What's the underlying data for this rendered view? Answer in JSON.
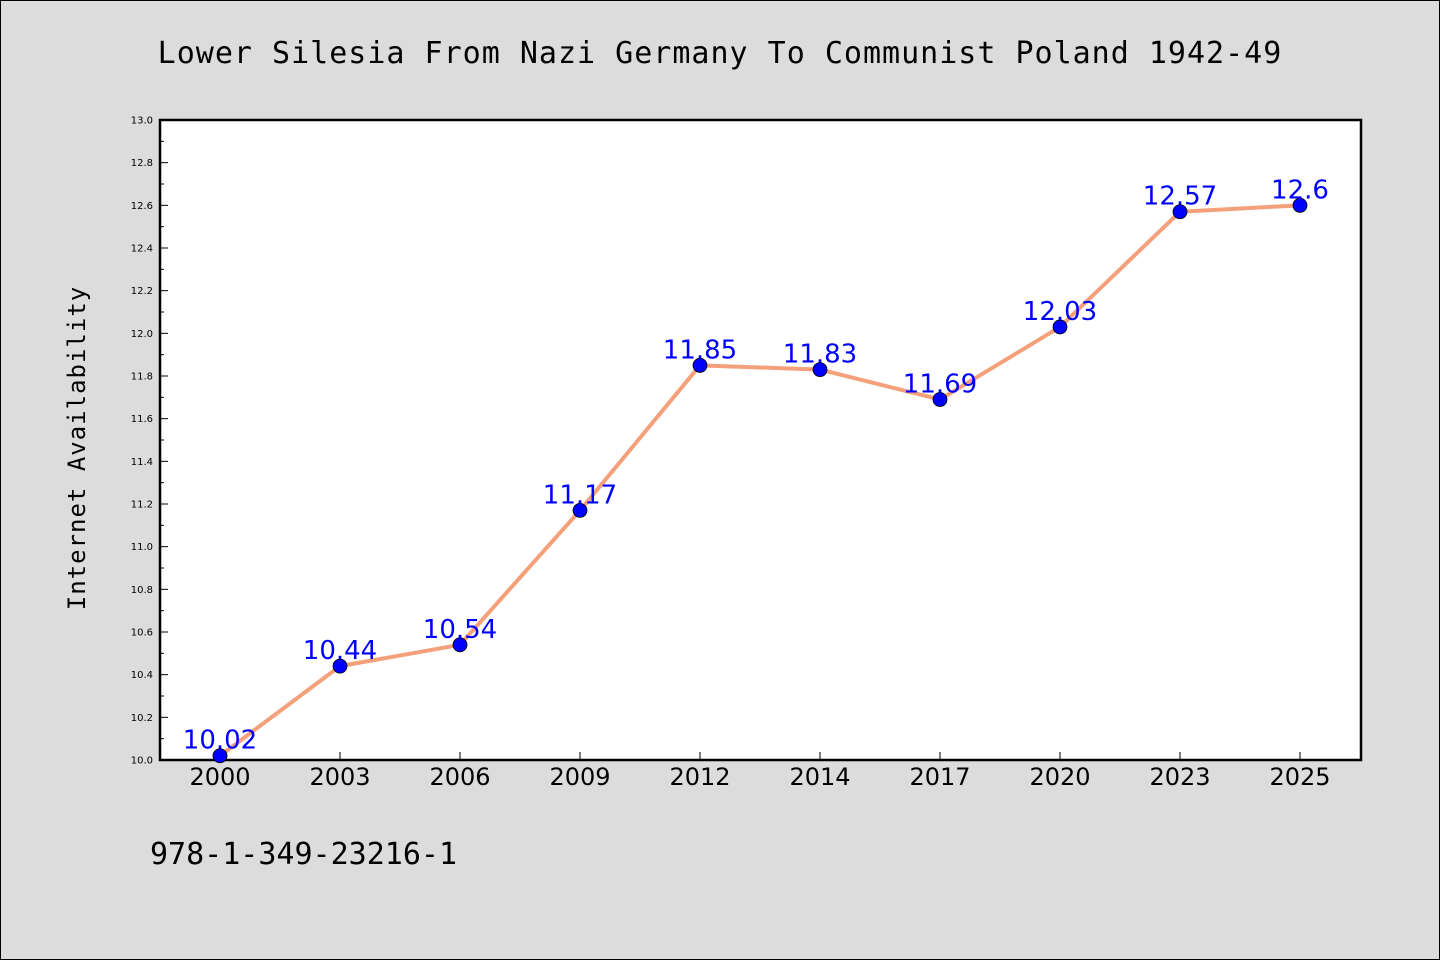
{
  "chart_data": {
    "type": "line",
    "title": "Lower Silesia From Nazi Germany To Communist Poland 1942-49",
    "xlabel": "",
    "ylabel": "Internet Availability",
    "categories": [
      "2000",
      "2003",
      "2006",
      "2009",
      "2012",
      "2014",
      "2017",
      "2020",
      "2023",
      "2025"
    ],
    "series": [
      {
        "values": [
          10.02,
          10.44,
          10.54,
          11.17,
          11.85,
          11.83,
          11.69,
          12.03,
          12.57,
          12.6
        ],
        "labels": [
          "10.02",
          "10.44",
          "10.54",
          "11.17",
          "11.85",
          "11.83",
          "11.69",
          "12.03",
          "12.57",
          "12.6"
        ],
        "line_color": "#f4a07a",
        "marker_color": "#0000ff"
      }
    ],
    "ylim": [
      10.0,
      13.0
    ],
    "yticks": [
      "10.0",
      "10.2",
      "10.4",
      "10.6",
      "10.8",
      "11.0",
      "11.2",
      "11.4",
      "11.6",
      "11.8",
      "12.0",
      "12.2",
      "12.4",
      "12.6",
      "12.8",
      "13.0"
    ],
    "grid": false,
    "legend": "none"
  },
  "footer": {
    "isbn": "978-1-349-23216-1"
  },
  "colors": {
    "background": "#dcdcdc",
    "plot_background": "#ffffff",
    "line": "#f4a07a",
    "marker": "#0000ff",
    "data_label": "#0000ff"
  }
}
